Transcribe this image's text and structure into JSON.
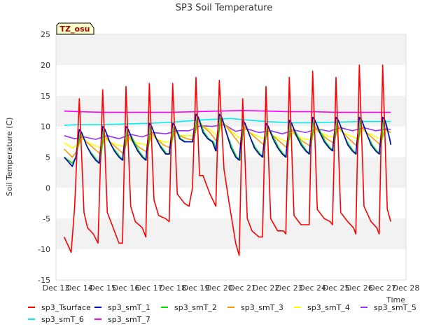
{
  "chart_data": {
    "type": "line",
    "title": "SP3 Soil Temperature",
    "xlabel": "Time",
    "ylabel": "Soil Temperature (C)",
    "ylim": [
      -15,
      25
    ],
    "xlim": [
      13,
      28
    ],
    "x_tick_labels": [
      "Dec 13",
      "Dec 14",
      "Dec 15",
      "Dec 16",
      "Dec 17",
      "Dec 18",
      "Dec 19",
      "Dec 20",
      "Dec 21",
      "Dec 22",
      "Dec 23",
      "Dec 24",
      "Dec 25",
      "Dec 26",
      "Dec 27",
      "Dec 28"
    ],
    "x_ticks": [
      13,
      14,
      15,
      16,
      17,
      18,
      19,
      20,
      21,
      22,
      23,
      24,
      25,
      26,
      27,
      28
    ],
    "y_ticks": [
      -15,
      -10,
      -5,
      0,
      5,
      10,
      15,
      20,
      25
    ],
    "grid": "horizontal bands",
    "legend_placement": "bottom",
    "annotation": "TZ_osu",
    "series": [
      {
        "name": "sp3_Tsurface",
        "color": "#ff0000",
        "x": [
          13.35,
          13.65,
          13.8,
          14.0,
          14.2,
          14.35,
          14.6,
          14.8,
          15.0,
          15.2,
          15.4,
          15.7,
          15.85,
          16.0,
          16.2,
          16.4,
          16.7,
          16.85,
          17.0,
          17.2,
          17.4,
          17.7,
          17.85,
          18.0,
          18.2,
          18.5,
          18.7,
          18.85,
          19.0,
          19.15,
          19.3,
          19.6,
          19.85,
          20.0,
          20.2,
          20.4,
          20.7,
          20.85,
          21.0,
          21.2,
          21.4,
          21.7,
          21.85,
          22.0,
          22.2,
          22.5,
          22.75,
          22.85,
          23.0,
          23.2,
          23.5,
          23.75,
          23.85,
          24.0,
          24.2,
          24.5,
          24.75,
          24.85,
          25.0,
          25.2,
          25.5,
          25.75,
          25.85,
          26.0,
          26.2,
          26.5,
          26.75,
          26.85,
          27.0,
          27.2,
          27.35
        ],
        "y": [
          -8,
          -10.5,
          -3,
          14.5,
          -4,
          -6.5,
          -7.5,
          -9,
          16,
          -4,
          -6,
          -9,
          -9,
          16.5,
          -3,
          -5.5,
          -6.5,
          -8,
          17,
          -2,
          -4.5,
          -5,
          -5.5,
          17,
          -1,
          -2.5,
          -3,
          0,
          18,
          2,
          2,
          -1,
          -3,
          17.5,
          3,
          -2,
          -9,
          -11,
          14.5,
          -5,
          -7,
          -8,
          -8,
          16.5,
          -5,
          -7,
          -7,
          -7.5,
          18,
          -4.5,
          -6,
          -6,
          -6,
          19,
          -3.5,
          -5,
          -5.5,
          -6,
          18,
          -4,
          -5.5,
          -6.5,
          -7.5,
          20,
          -3,
          -5.5,
          -6.5,
          -7.5,
          20,
          -3.5,
          -5.5
        ]
      },
      {
        "name": "sp3_smT_1",
        "color": "#0000cc",
        "x": [
          13.35,
          13.7,
          13.85,
          14.0,
          14.1,
          14.3,
          14.5,
          14.7,
          14.85,
          15.0,
          15.1,
          15.3,
          15.5,
          15.7,
          15.85,
          16.0,
          16.1,
          16.3,
          16.5,
          16.7,
          16.85,
          17.0,
          17.1,
          17.3,
          17.5,
          17.7,
          17.85,
          18.0,
          18.1,
          18.3,
          18.5,
          18.7,
          18.85,
          19.0,
          19.1,
          19.3,
          19.5,
          19.7,
          19.85,
          20.0,
          20.1,
          20.3,
          20.5,
          20.7,
          20.85,
          21.0,
          21.1,
          21.3,
          21.5,
          21.7,
          21.85,
          22.0,
          22.1,
          22.3,
          22.5,
          22.7,
          22.85,
          23.0,
          23.1,
          23.3,
          23.5,
          23.7,
          23.85,
          24.0,
          24.1,
          24.3,
          24.5,
          24.7,
          24.85,
          25.0,
          25.1,
          25.3,
          25.5,
          25.7,
          25.85,
          26.0,
          26.1,
          26.3,
          26.5,
          26.7,
          26.85,
          27.0,
          27.1,
          27.3,
          27.35
        ],
        "y": [
          5,
          3.5,
          5,
          9.5,
          9,
          7,
          5.5,
          4.5,
          4,
          10,
          9.5,
          7.5,
          6,
          5,
          4.5,
          10,
          9.5,
          7.5,
          6,
          5,
          4.5,
          10.5,
          10,
          8,
          6.5,
          5.5,
          5.5,
          10.5,
          10,
          8,
          7.5,
          7.5,
          7.5,
          12,
          11.5,
          9,
          8,
          7.5,
          6,
          12,
          11.5,
          9,
          6.5,
          5,
          4.5,
          11,
          10.5,
          8.5,
          6.5,
          5.5,
          5,
          10.5,
          10,
          8,
          6.5,
          5.5,
          5,
          11,
          10.5,
          8.5,
          7,
          6,
          5.5,
          11.5,
          11,
          9,
          7.5,
          6.5,
          6,
          11.5,
          11,
          9,
          7,
          6,
          5.5,
          11.5,
          11,
          9,
          7,
          6,
          5.5,
          11.5,
          11,
          8,
          7
        ]
      },
      {
        "name": "sp3_smT_2",
        "color": "#00dd00",
        "x": [
          13.35,
          13.7,
          13.85,
          14.05,
          14.15,
          14.35,
          14.55,
          14.75,
          14.9,
          15.05,
          15.15,
          15.35,
          15.55,
          15.75,
          15.9,
          16.05,
          16.15,
          16.35,
          16.55,
          16.75,
          16.9,
          17.05,
          17.15,
          17.35,
          17.55,
          17.75,
          17.9,
          18.05,
          18.15,
          18.35,
          18.55,
          18.75,
          18.9,
          19.05,
          19.15,
          19.35,
          19.55,
          19.75,
          19.9,
          20.05,
          20.15,
          20.35,
          20.55,
          20.75,
          20.9,
          21.05,
          21.15,
          21.35,
          21.55,
          21.75,
          21.9,
          22.05,
          22.15,
          22.35,
          22.55,
          22.75,
          22.9,
          23.05,
          23.15,
          23.35,
          23.55,
          23.75,
          23.9,
          24.05,
          24.15,
          24.35,
          24.55,
          24.75,
          24.9,
          25.05,
          25.15,
          25.35,
          25.55,
          25.75,
          25.9,
          26.05,
          26.15,
          26.35,
          26.55,
          26.75,
          26.9,
          27.05,
          27.15,
          27.3,
          27.35
        ],
        "y": [
          5,
          4,
          5,
          9,
          8.5,
          6.5,
          5.5,
          4.5,
          4,
          9.5,
          9,
          7,
          6,
          5,
          4.5,
          9.5,
          9,
          7.5,
          6,
          5,
          4.5,
          10,
          9.5,
          7.5,
          6.5,
          5.5,
          5.5,
          10,
          9.5,
          8,
          7.5,
          7.5,
          7.5,
          11.5,
          11,
          9,
          8,
          7.5,
          6,
          11.5,
          11,
          8.5,
          6.5,
          5,
          4.5,
          10.5,
          10,
          8,
          6.5,
          5.5,
          5,
          10,
          9.5,
          8,
          6.5,
          5.5,
          5,
          10.5,
          10,
          8.5,
          7,
          6,
          5.5,
          11,
          10.5,
          9,
          7.5,
          6.5,
          6,
          11,
          10.5,
          8.5,
          7,
          6,
          5.5,
          11,
          10.5,
          8.5,
          7,
          6,
          5.5,
          11,
          10.5,
          8,
          7
        ]
      },
      {
        "name": "sp3_smT_3",
        "color": "#ff9900",
        "x": [
          13.35,
          13.7,
          13.9,
          14.1,
          14.3,
          14.6,
          14.9,
          15.1,
          15.3,
          15.6,
          15.9,
          16.1,
          16.3,
          16.6,
          16.9,
          17.1,
          17.3,
          17.6,
          17.9,
          18.1,
          18.3,
          18.6,
          18.9,
          19.1,
          19.3,
          19.6,
          19.9,
          20.1,
          20.3,
          20.6,
          20.9,
          21.1,
          21.3,
          21.6,
          21.9,
          22.1,
          22.3,
          22.6,
          22.9,
          23.1,
          23.3,
          23.6,
          23.9,
          24.1,
          24.3,
          24.6,
          24.9,
          25.1,
          25.3,
          25.6,
          25.9,
          26.1,
          26.3,
          26.6,
          26.9,
          27.1,
          27.35
        ],
        "y": [
          6.3,
          5,
          6,
          8.5,
          7.5,
          6.5,
          5.5,
          8.5,
          7.5,
          6.5,
          5.5,
          8.5,
          7.5,
          6.5,
          5.8,
          9,
          8,
          7,
          6.5,
          9.5,
          8.5,
          8,
          7.8,
          11,
          10,
          9,
          7.5,
          11,
          10,
          8.5,
          7,
          10,
          9,
          8,
          7,
          9.5,
          8.5,
          7.5,
          6.5,
          9.5,
          8.5,
          7.5,
          6.8,
          10,
          9,
          8,
          7.3,
          10,
          9,
          7.8,
          6.8,
          10,
          9,
          8,
          7,
          9.5,
          9
        ]
      },
      {
        "name": "sp3_smT_4",
        "color": "#ffff00",
        "x": [
          13.35,
          13.7,
          13.9,
          14.1,
          14.3,
          14.6,
          14.9,
          15.1,
          15.3,
          15.6,
          15.9,
          16.1,
          16.3,
          16.6,
          16.9,
          17.1,
          17.3,
          17.6,
          17.9,
          18.1,
          18.3,
          18.6,
          18.9,
          19.1,
          19.3,
          19.6,
          19.9,
          20.1,
          20.3,
          20.6,
          20.9,
          21.1,
          21.3,
          21.6,
          21.9,
          22.1,
          22.3,
          22.6,
          22.9,
          23.1,
          23.3,
          23.6,
          23.9,
          24.1,
          24.3,
          24.6,
          24.9,
          25.1,
          25.3,
          25.6,
          25.9,
          26.1,
          26.3,
          26.6,
          26.9,
          27.1,
          27.35
        ],
        "y": [
          7.3,
          6.5,
          7,
          8,
          7.5,
          7,
          6.5,
          8,
          7.5,
          7,
          6.8,
          8,
          7.5,
          7.2,
          7,
          8.5,
          8,
          7.5,
          7.5,
          9,
          8.5,
          8.5,
          8.5,
          10.5,
          10,
          9.5,
          8.5,
          10.5,
          10,
          9,
          8,
          9.5,
          9,
          8.5,
          8,
          9,
          8.5,
          8,
          7.5,
          9,
          8.5,
          8,
          7.8,
          9.5,
          9,
          8.5,
          8.2,
          9.5,
          9,
          8.5,
          8,
          9.5,
          9,
          8.5,
          8,
          9.3,
          9
        ]
      },
      {
        "name": "sp3_smT_5",
        "color": "#9933ff",
        "x": [
          13.35,
          13.8,
          14.2,
          14.7,
          15.2,
          15.7,
          16.2,
          16.7,
          17.2,
          17.7,
          18.2,
          18.7,
          19.2,
          19.7,
          20.2,
          20.7,
          21.2,
          21.7,
          22.2,
          22.7,
          23.2,
          23.7,
          24.2,
          24.7,
          25.2,
          25.7,
          26.2,
          26.7,
          27.2,
          27.35
        ],
        "y": [
          8.5,
          8,
          8.3,
          7.9,
          8.5,
          8,
          8.7,
          8.3,
          9,
          8.8,
          9.3,
          9.3,
          10.1,
          10,
          10.3,
          9.2,
          9.6,
          9,
          9.3,
          8.8,
          9.4,
          9,
          9.6,
          9.2,
          9.8,
          9.3,
          9.8,
          9.3,
          9.6,
          9.5
        ]
      },
      {
        "name": "sp3_smT_6",
        "color": "#00eeee",
        "x": [
          13.35,
          14,
          15,
          16,
          17,
          18,
          19,
          20,
          20.5,
          21,
          22,
          23,
          24,
          25,
          26,
          27,
          27.35
        ],
        "y": [
          10.2,
          10.3,
          10.3,
          10.4,
          10.5,
          10.7,
          11,
          11.2,
          11.3,
          11.1,
          10.8,
          10.6,
          10.6,
          10.7,
          10.8,
          10.8,
          10.8
        ]
      },
      {
        "name": "sp3_smT_7",
        "color": "#ff00ff",
        "x": [
          13.35,
          14,
          15,
          16,
          17,
          18,
          19,
          20,
          21,
          22,
          23,
          24,
          25,
          26,
          27,
          27.35
        ],
        "y": [
          12.5,
          12.4,
          12.3,
          12.3,
          12.3,
          12.3,
          12.4,
          12.5,
          12.6,
          12.5,
          12.4,
          12.4,
          12.3,
          12.3,
          12.3,
          12.3
        ]
      }
    ]
  }
}
